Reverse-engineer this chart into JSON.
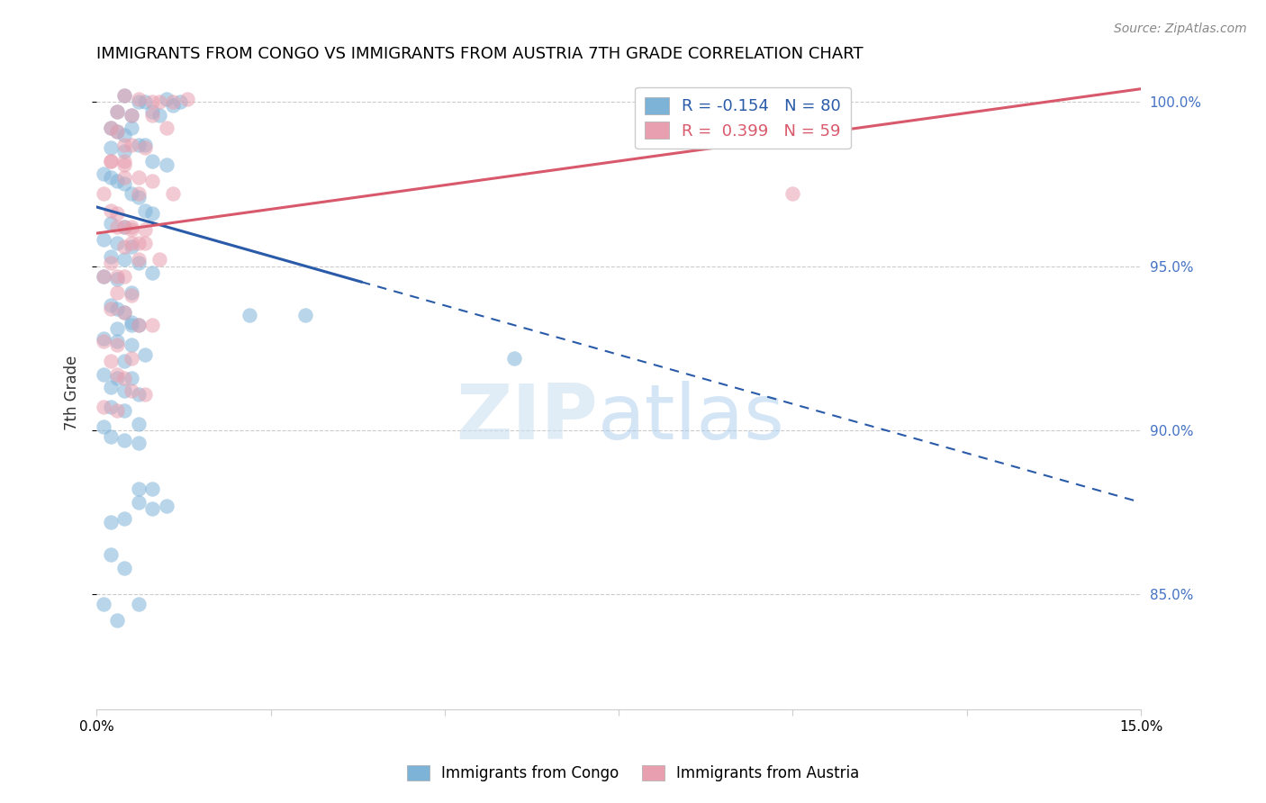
{
  "title": "IMMIGRANTS FROM CONGO VS IMMIGRANTS FROM AUSTRIA 7TH GRADE CORRELATION CHART",
  "source": "Source: ZipAtlas.com",
  "ylabel": "7th Grade",
  "ylabel_right_labels": [
    "100.0%",
    "95.0%",
    "90.0%",
    "85.0%"
  ],
  "ylabel_right_positions": [
    1.0,
    0.95,
    0.9,
    0.85
  ],
  "legend_blue_label": "Immigrants from Congo",
  "legend_pink_label": "Immigrants from Austria",
  "R_blue": -0.154,
  "N_blue": 80,
  "R_pink": 0.399,
  "N_pink": 59,
  "blue_color": "#7EB3D8",
  "pink_color": "#E8A0B0",
  "blue_line_color": "#2A5BA8",
  "pink_line_color": "#D9596C",
  "x_min": 0.0,
  "x_max": 0.15,
  "y_min": 0.815,
  "y_max": 1.008,
  "blue_line_x0": 0.0,
  "blue_line_y0": 0.968,
  "blue_line_x1": 0.15,
  "blue_line_y1": 0.878,
  "blue_line_solid_end": 0.038,
  "pink_line_x0": 0.0,
  "pink_line_y0": 0.96,
  "pink_line_x1": 0.15,
  "pink_line_y1": 1.004,
  "blue_scatter_x": [
    0.004,
    0.006,
    0.007,
    0.01,
    0.011,
    0.012,
    0.003,
    0.005,
    0.008,
    0.009,
    0.002,
    0.003,
    0.004,
    0.005,
    0.007,
    0.002,
    0.004,
    0.006,
    0.008,
    0.01,
    0.001,
    0.002,
    0.003,
    0.004,
    0.005,
    0.006,
    0.007,
    0.008,
    0.002,
    0.004,
    0.001,
    0.003,
    0.005,
    0.002,
    0.004,
    0.006,
    0.008,
    0.001,
    0.003,
    0.005,
    0.002,
    0.003,
    0.004,
    0.005,
    0.006,
    0.001,
    0.003,
    0.005,
    0.007,
    0.004,
    0.001,
    0.003,
    0.005,
    0.002,
    0.004,
    0.006,
    0.002,
    0.004,
    0.006,
    0.001,
    0.002,
    0.004,
    0.006,
    0.008,
    0.006,
    0.008,
    0.01,
    0.005,
    0.003,
    0.006,
    0.03,
    0.022,
    0.002,
    0.004,
    0.002,
    0.004,
    0.006,
    0.001,
    0.003,
    0.06
  ],
  "blue_scatter_y": [
    1.002,
    1.0,
    1.0,
    1.001,
    0.999,
    1.0,
    0.997,
    0.996,
    0.997,
    0.996,
    0.992,
    0.991,
    0.99,
    0.992,
    0.987,
    0.986,
    0.985,
    0.987,
    0.982,
    0.981,
    0.978,
    0.977,
    0.976,
    0.975,
    0.972,
    0.971,
    0.967,
    0.966,
    0.963,
    0.962,
    0.958,
    0.957,
    0.956,
    0.953,
    0.952,
    0.951,
    0.948,
    0.947,
    0.946,
    0.942,
    0.938,
    0.937,
    0.936,
    0.933,
    0.932,
    0.928,
    0.927,
    0.926,
    0.923,
    0.921,
    0.917,
    0.916,
    0.916,
    0.913,
    0.912,
    0.911,
    0.907,
    0.906,
    0.902,
    0.901,
    0.898,
    0.897,
    0.896,
    0.882,
    0.878,
    0.876,
    0.877,
    0.932,
    0.931,
    0.882,
    0.935,
    0.935,
    0.872,
    0.873,
    0.862,
    0.858,
    0.847,
    0.847,
    0.842,
    0.922
  ],
  "pink_scatter_x": [
    0.004,
    0.006,
    0.008,
    0.009,
    0.011,
    0.013,
    0.003,
    0.005,
    0.008,
    0.01,
    0.002,
    0.003,
    0.004,
    0.005,
    0.007,
    0.002,
    0.004,
    0.006,
    0.008,
    0.011,
    0.001,
    0.002,
    0.003,
    0.004,
    0.005,
    0.006,
    0.007,
    0.009,
    0.002,
    0.004,
    0.001,
    0.003,
    0.005,
    0.002,
    0.004,
    0.006,
    0.008,
    0.001,
    0.003,
    0.005,
    0.002,
    0.003,
    0.004,
    0.005,
    0.007,
    0.001,
    0.003,
    0.005,
    0.007,
    0.004,
    0.002,
    0.004,
    0.006,
    0.003,
    0.005,
    0.006,
    0.003,
    0.004,
    0.1
  ],
  "pink_scatter_y": [
    1.002,
    1.001,
    1.0,
    1.0,
    1.0,
    1.001,
    0.997,
    0.996,
    0.996,
    0.992,
    0.992,
    0.991,
    0.987,
    0.987,
    0.986,
    0.982,
    0.981,
    0.977,
    0.976,
    0.972,
    0.972,
    0.967,
    0.966,
    0.962,
    0.961,
    0.957,
    0.957,
    0.952,
    0.951,
    0.947,
    0.947,
    0.942,
    0.941,
    0.937,
    0.936,
    0.932,
    0.932,
    0.927,
    0.926,
    0.922,
    0.921,
    0.917,
    0.916,
    0.912,
    0.911,
    0.907,
    0.906,
    0.962,
    0.961,
    0.956,
    0.982,
    0.977,
    0.972,
    0.962,
    0.957,
    0.952,
    0.947,
    0.982,
    0.972
  ]
}
